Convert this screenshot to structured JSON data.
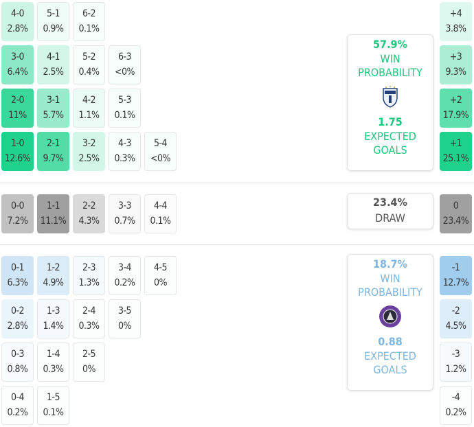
{
  "home": {
    "color": "#1fc77e",
    "win_pct": "57.9%",
    "win_label": "WIN PROBABILITY",
    "xg": "1.75",
    "xg_label": "EXPECTED GOALS",
    "crest_icon": "home-team-crest-icon",
    "rows": [
      [
        {
          "score": "4-0",
          "pct": "2.8%"
        },
        {
          "score": "5-1",
          "pct": "0.9%"
        },
        {
          "score": "6-2",
          "pct": "0.1%"
        }
      ],
      [
        {
          "score": "3-0",
          "pct": "6.4%"
        },
        {
          "score": "4-1",
          "pct": "2.5%"
        },
        {
          "score": "5-2",
          "pct": "0.4%"
        },
        {
          "score": "6-3",
          "pct": "<0%"
        }
      ],
      [
        {
          "score": "2-0",
          "pct": "11%"
        },
        {
          "score": "3-1",
          "pct": "5.7%"
        },
        {
          "score": "4-2",
          "pct": "1.1%"
        },
        {
          "score": "5-3",
          "pct": "0.1%"
        }
      ],
      [
        {
          "score": "1-0",
          "pct": "12.6%"
        },
        {
          "score": "2-1",
          "pct": "9.7%"
        },
        {
          "score": "3-2",
          "pct": "2.5%"
        },
        {
          "score": "4-3",
          "pct": "0.3%"
        },
        {
          "score": "5-4",
          "pct": "<0%"
        }
      ]
    ],
    "margins": [
      {
        "label": "+4",
        "pct": "3.8%"
      },
      {
        "label": "+3",
        "pct": "9.3%"
      },
      {
        "label": "+2",
        "pct": "17.9%"
      },
      {
        "label": "+1",
        "pct": "25.1%"
      }
    ]
  },
  "draw": {
    "color": "#999999",
    "pct": "23.4%",
    "label": "DRAW",
    "row": [
      {
        "score": "0-0",
        "pct": "7.2%"
      },
      {
        "score": "1-1",
        "pct": "11.1%"
      },
      {
        "score": "2-2",
        "pct": "4.3%"
      },
      {
        "score": "3-3",
        "pct": "0.7%"
      },
      {
        "score": "4-4",
        "pct": "0.1%"
      }
    ],
    "margin": {
      "label": "0",
      "pct": "23.4%"
    }
  },
  "away": {
    "color": "#7fb6e0",
    "win_pct": "18.7%",
    "win_label": "WIN PROBABILITY",
    "xg": "0.88",
    "xg_label": "EXPECTED GOALS",
    "crest_icon": "away-team-crest-icon",
    "rows": [
      [
        {
          "score": "0-1",
          "pct": "6.3%"
        },
        {
          "score": "1-2",
          "pct": "4.9%"
        },
        {
          "score": "2-3",
          "pct": "1.3%"
        },
        {
          "score": "3-4",
          "pct": "0.2%"
        },
        {
          "score": "4-5",
          "pct": "0%"
        }
      ],
      [
        {
          "score": "0-2",
          "pct": "2.8%"
        },
        {
          "score": "1-3",
          "pct": "1.4%"
        },
        {
          "score": "2-4",
          "pct": "0.3%"
        },
        {
          "score": "3-5",
          "pct": "0%"
        }
      ],
      [
        {
          "score": "0-3",
          "pct": "0.8%"
        },
        {
          "score": "1-4",
          "pct": "0.3%"
        },
        {
          "score": "2-5",
          "pct": "0%"
        }
      ],
      [
        {
          "score": "0-4",
          "pct": "0.2%"
        },
        {
          "score": "1-5",
          "pct": "0.1%"
        }
      ]
    ],
    "margins": [
      {
        "label": "-1",
        "pct": "12.7%"
      },
      {
        "label": "-2",
        "pct": "4.5%"
      },
      {
        "label": "-3",
        "pct": "1.2%"
      },
      {
        "label": "-4",
        "pct": "0.2%"
      }
    ]
  }
}
